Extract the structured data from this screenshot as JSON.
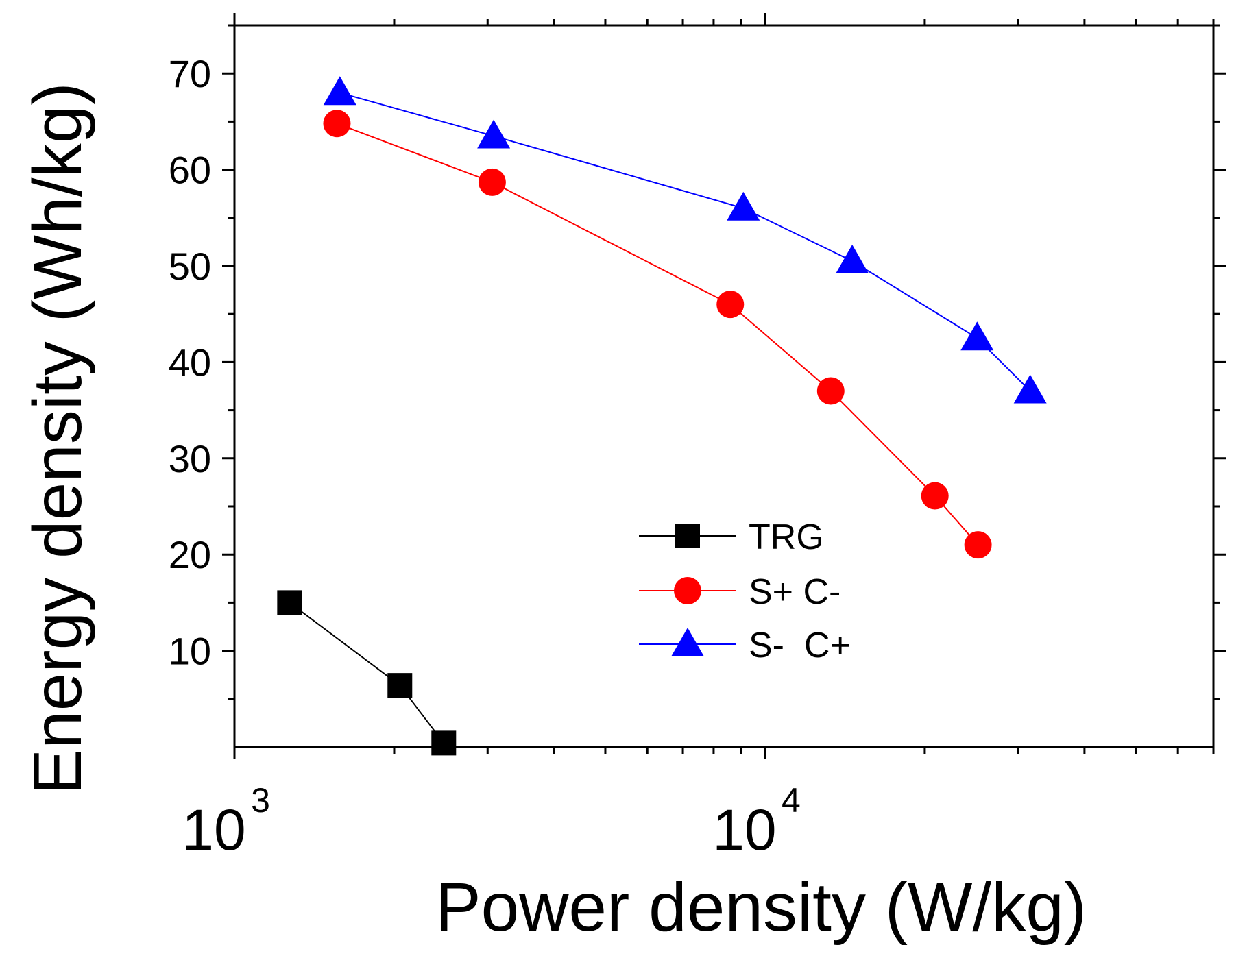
{
  "chart_data": {
    "type": "line",
    "title": "",
    "xlabel": "Power density (W/kg)",
    "ylabel": "Energy density (Wh/kg)",
    "xscale": "log",
    "xlim": [
      1000,
      70000
    ],
    "ylim": [
      0,
      75
    ],
    "xticks": [
      {
        "value": 1000,
        "base": "10",
        "exp": "3"
      },
      {
        "value": 10000,
        "base": "10",
        "exp": "4"
      }
    ],
    "yticks": [
      10,
      20,
      30,
      40,
      50,
      60,
      70
    ],
    "legend_position": "center-right",
    "series": [
      {
        "name": "TRG",
        "color": "#000000",
        "marker": "square",
        "x": [
          1270,
          2050,
          2480
        ],
        "y": [
          15,
          6.4,
          0.4
        ]
      },
      {
        "name": "S+ C-",
        "color": "#ff0000",
        "marker": "circle",
        "x": [
          1560,
          3060,
          8600,
          13300,
          20900,
          25200
        ],
        "y": [
          64.8,
          58.7,
          46,
          37,
          26.1,
          21
        ]
      },
      {
        "name": "S-  C+",
        "color": "#0000ff",
        "marker": "triangle",
        "x": [
          1580,
          3080,
          9100,
          14600,
          25100,
          31600
        ],
        "y": [
          68,
          63.5,
          56,
          50.5,
          42.5,
          37
        ]
      }
    ]
  }
}
